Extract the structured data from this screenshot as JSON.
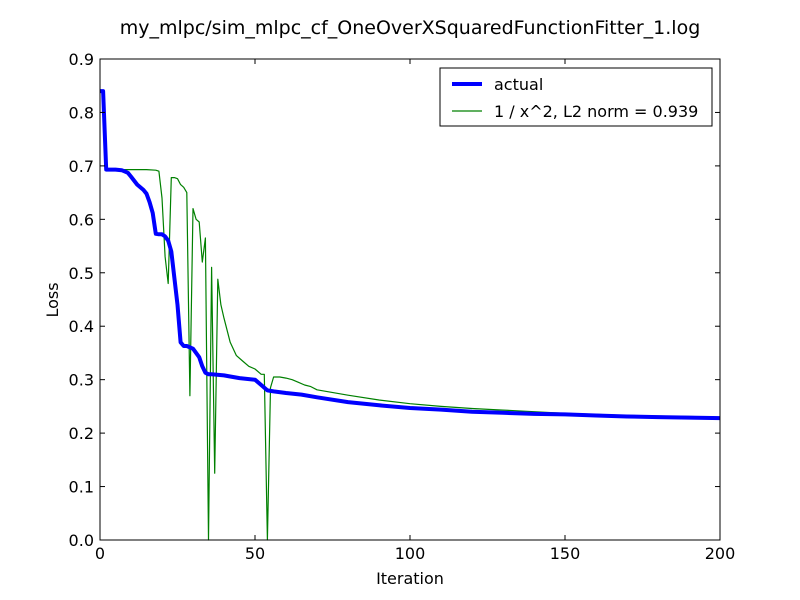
{
  "chart_data": {
    "type": "line",
    "title": "my_mlpc/sim_mlpc_cf_OneOverXSquaredFunctionFitter_1.log",
    "xlabel": "Iteration",
    "ylabel": "Loss",
    "xlim": [
      0,
      200
    ],
    "ylim": [
      0,
      0.9
    ],
    "xticks": [
      0,
      50,
      100,
      150,
      200
    ],
    "xtick_labels": [
      "0",
      "50",
      "100",
      "150",
      "200"
    ],
    "yticks": [
      0,
      0.1,
      0.2,
      0.3,
      0.4,
      0.5,
      0.6,
      0.7,
      0.8,
      0.9
    ],
    "ytick_labels": [
      "0.0",
      "0.1",
      "0.2",
      "0.3",
      "0.4",
      "0.5",
      "0.6",
      "0.7",
      "0.8",
      "0.9"
    ],
    "grid": false,
    "legend_position": "top-right",
    "series": [
      {
        "name": "actual",
        "color": "#0000ff",
        "x": [
          0,
          1,
          2,
          5,
          7,
          9,
          10,
          12,
          14,
          15,
          16,
          17,
          18,
          19,
          20,
          21,
          22,
          23,
          24,
          25,
          26,
          27,
          28,
          30,
          32,
          33,
          34,
          35,
          36,
          40,
          42,
          45,
          50,
          52,
          54,
          56,
          60,
          65,
          70,
          80,
          90,
          100,
          110,
          120,
          130,
          140,
          150,
          160,
          170,
          180,
          190,
          200
        ],
        "y": [
          0.84,
          0.84,
          0.693,
          0.693,
          0.692,
          0.687,
          0.68,
          0.665,
          0.655,
          0.648,
          0.632,
          0.612,
          0.573,
          0.572,
          0.572,
          0.568,
          0.56,
          0.54,
          0.49,
          0.44,
          0.37,
          0.363,
          0.363,
          0.358,
          0.342,
          0.325,
          0.313,
          0.31,
          0.31,
          0.308,
          0.306,
          0.303,
          0.3,
          0.29,
          0.28,
          0.278,
          0.275,
          0.272,
          0.267,
          0.258,
          0.252,
          0.247,
          0.244,
          0.24,
          0.238,
          0.236,
          0.235,
          0.233,
          0.231,
          0.23,
          0.229,
          0.228
        ]
      },
      {
        "name": "1 / x^2, L2 norm = 0.939",
        "color": "#008000",
        "x": [
          0,
          1,
          2,
          5,
          10,
          15,
          18,
          19,
          20,
          21,
          22,
          23,
          24,
          25,
          26,
          27,
          28,
          29,
          30,
          31,
          32,
          33,
          34,
          35,
          36,
          37,
          38,
          39,
          40,
          42,
          44,
          46,
          48,
          50,
          52,
          53,
          54,
          55,
          56,
          58,
          60,
          62,
          64,
          66,
          68,
          70,
          80,
          90,
          100,
          110,
          120,
          130,
          140,
          150,
          160,
          170,
          180,
          190,
          200
        ],
        "y": [
          0.84,
          0.84,
          0.693,
          0.693,
          0.693,
          0.693,
          0.692,
          0.69,
          0.64,
          0.53,
          0.48,
          0.678,
          0.678,
          0.676,
          0.665,
          0.66,
          0.65,
          0.27,
          0.62,
          0.6,
          0.595,
          0.52,
          0.565,
          0.0,
          0.51,
          0.125,
          0.488,
          0.44,
          0.415,
          0.37,
          0.345,
          0.335,
          0.325,
          0.32,
          0.31,
          0.31,
          0.0,
          0.285,
          0.305,
          0.305,
          0.303,
          0.3,
          0.295,
          0.29,
          0.287,
          0.281,
          0.271,
          0.262,
          0.255,
          0.25,
          0.246,
          0.243,
          0.24,
          0.237,
          0.235,
          0.233,
          0.232,
          0.231,
          0.23
        ]
      }
    ]
  }
}
